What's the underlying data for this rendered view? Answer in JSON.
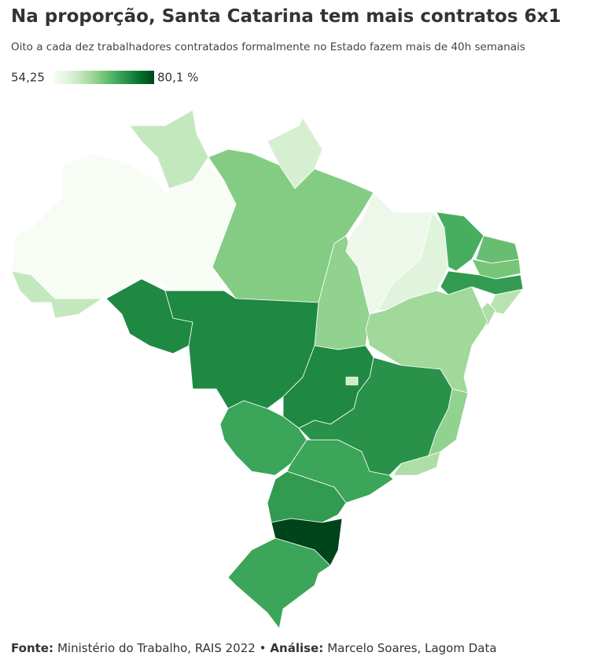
{
  "header": {
    "title": "Na proporção, Santa Catarina tem mais contratos 6x1",
    "subtitle": "Oito a cada dez trabalhadores contratados formalmente no Estado fazem mais de 40h semanais"
  },
  "legend": {
    "min": {
      "value": 54.25,
      "label": "54,25"
    },
    "max": {
      "value": 80.1,
      "label": "80,1 %"
    }
  },
  "map": {
    "values": [
      54.25,
      61,
      59,
      66,
      61,
      74,
      74,
      65,
      56,
      58,
      70,
      68,
      67,
      72,
      62,
      63,
      64,
      74,
      60,
      71,
      73,
      65,
      63,
      71,
      72,
      80.1,
      71
    ]
  },
  "source": {
    "parts": [
      "Fonte:",
      "Ministério do Trabalho, RAIS 2022 •",
      "Análise:",
      "Marcelo Soares, Lagom Data"
    ]
  }
}
